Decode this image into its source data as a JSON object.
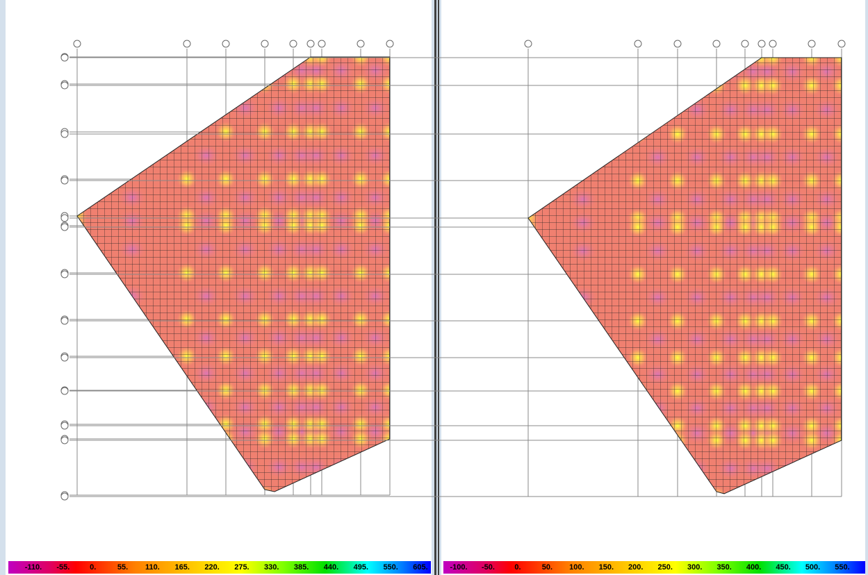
{
  "panels": [
    {
      "legend": {
        "labels": [
          "-110.",
          "-55.",
          "0.",
          "55.",
          "110.",
          "165.",
          "220.",
          "275.",
          "330.",
          "385.",
          "440.",
          "495.",
          "550.",
          "605."
        ]
      }
    },
    {
      "legend": {
        "labels": [
          "-100.",
          "-50.",
          "0.",
          "50.",
          "100.",
          "150.",
          "200.",
          "250.",
          "300.",
          "350.",
          "400.",
          "450.",
          "500.",
          "550."
        ]
      }
    }
  ]
}
